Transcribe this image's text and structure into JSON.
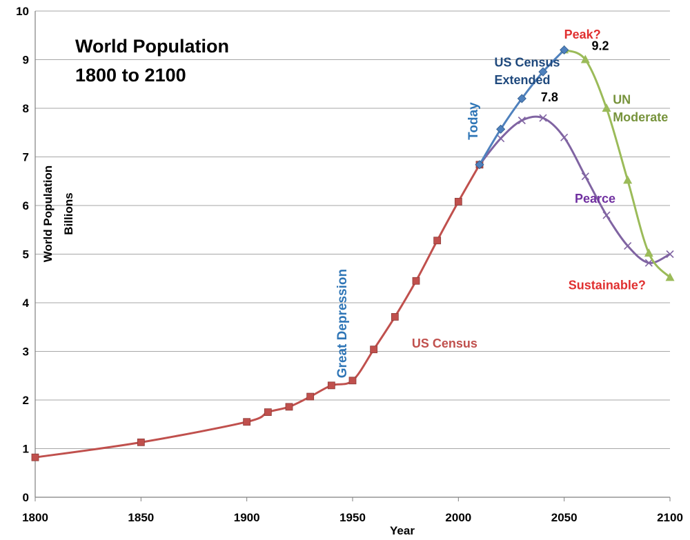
{
  "chart_data": {
    "type": "line",
    "title": [
      "World Population",
      "1800 to 2100"
    ],
    "xlabel": "Year",
    "ylabel": [
      "World Population",
      "Billions"
    ],
    "xlim": [
      1800,
      2100
    ],
    "ylim": [
      0,
      10
    ],
    "x_ticks": [
      "1800",
      "1850",
      "1900",
      "1950",
      "2000",
      "2050",
      "2100"
    ],
    "y_ticks": [
      "0",
      "1",
      "2",
      "3",
      "4",
      "5",
      "6",
      "7",
      "8",
      "9",
      "10"
    ],
    "grid": "horizontal",
    "series": [
      {
        "name": "US Census",
        "color": "#C0504D",
        "marker": "square",
        "x": [
          1800,
          1850,
          1900,
          1910,
          1920,
          1930,
          1940,
          1950,
          1960,
          1970,
          1980,
          1990,
          2000,
          2010
        ],
        "y": [
          0.82,
          1.13,
          1.55,
          1.75,
          1.86,
          2.07,
          2.3,
          2.4,
          3.04,
          3.71,
          4.45,
          5.28,
          6.08,
          6.84
        ]
      },
      {
        "name": "US Census Extended",
        "color": "#4F81BD",
        "marker": "diamond",
        "x": [
          2010,
          2020,
          2030,
          2040,
          2050
        ],
        "y": [
          6.84,
          7.57,
          8.2,
          8.75,
          9.2
        ]
      },
      {
        "name": "UN Moderate",
        "color": "#9BBB59",
        "marker": "triangle",
        "x": [
          2050,
          2060,
          2070,
          2080,
          2090,
          2100
        ],
        "y": [
          9.2,
          9.0,
          8.0,
          6.52,
          5.02,
          4.52
        ]
      },
      {
        "name": "Pearce",
        "color": "#8064A2",
        "marker": "x",
        "x": [
          2010,
          2020,
          2030,
          2040,
          2050,
          2060,
          2070,
          2080,
          2090,
          2100
        ],
        "y": [
          6.84,
          7.38,
          7.75,
          7.8,
          7.4,
          6.6,
          5.8,
          5.17,
          4.82,
          5.0
        ]
      }
    ],
    "annotations": [
      {
        "text": "Peak?",
        "color": "#E03030",
        "x": 2050,
        "y": 9.43
      },
      {
        "text": "9.2",
        "color": "#000000",
        "x": 2063,
        "y": 9.2
      },
      {
        "text": "7.8",
        "color": "#000000",
        "x": 2039,
        "y": 8.14
      },
      {
        "text": "US Census",
        "color": "#1F497D",
        "x": 2017,
        "y": 8.86
      },
      {
        "text": "Extended",
        "color": "#1F497D",
        "x": 2017,
        "y": 8.5
      },
      {
        "text": "UN",
        "color": "#77933C",
        "x": 2073,
        "y": 8.09
      },
      {
        "text": "Moderate",
        "color": "#77933C",
        "x": 2073,
        "y": 7.73
      },
      {
        "text": "Pearce",
        "color": "#7030A0",
        "x": 2055,
        "y": 6.06
      },
      {
        "text": "Sustainable?",
        "color": "#E03030",
        "x": 2052,
        "y": 4.28
      },
      {
        "text": "US Census",
        "color": "#C0504D",
        "x": 1978,
        "y": 3.08
      },
      {
        "text": "Today",
        "color": "#2E75B6",
        "x": 2009,
        "y": 7.35,
        "rotate": -90
      },
      {
        "text": "Great Depression",
        "color": "#2E75B6",
        "x": 1947,
        "y": 2.45,
        "rotate": -90
      }
    ]
  }
}
